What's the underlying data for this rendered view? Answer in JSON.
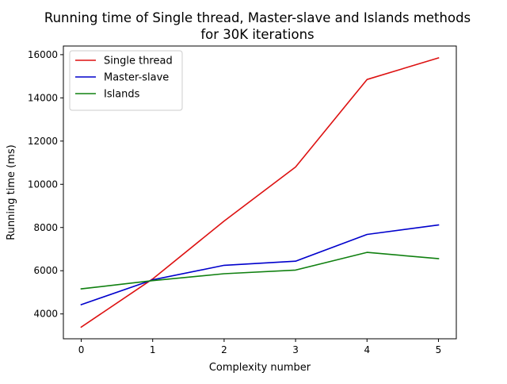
{
  "chart_data": {
    "type": "line",
    "title": "Running time of Single thread, Master-slave and Islands methods for 30K iterations",
    "title_lines": [
      "Running time of Single thread, Master-slave and Islands methods",
      "for 30K iterations"
    ],
    "xlabel": "Complexity number",
    "ylabel": "Running time (ms)",
    "x": [
      0,
      1,
      2,
      3,
      4,
      5
    ],
    "xticks": [
      0,
      1,
      2,
      3,
      4,
      5
    ],
    "yticks": [
      4000,
      6000,
      8000,
      10000,
      12000,
      14000,
      16000
    ],
    "xlim": [
      -0.25,
      5.25
    ],
    "ylim": [
      2850,
      16400
    ],
    "grid": false,
    "legend_position": "top-left",
    "series": [
      {
        "name": "Single thread",
        "color": "#dd1111",
        "values": [
          3390,
          5620,
          8300,
          10800,
          14850,
          15850
        ]
      },
      {
        "name": "Master-slave",
        "color": "#0000cc",
        "values": [
          4430,
          5580,
          6250,
          6440,
          7680,
          8120
        ]
      },
      {
        "name": "Islands",
        "color": "#108010",
        "values": [
          5160,
          5540,
          5860,
          6030,
          6850,
          6560
        ]
      }
    ]
  }
}
